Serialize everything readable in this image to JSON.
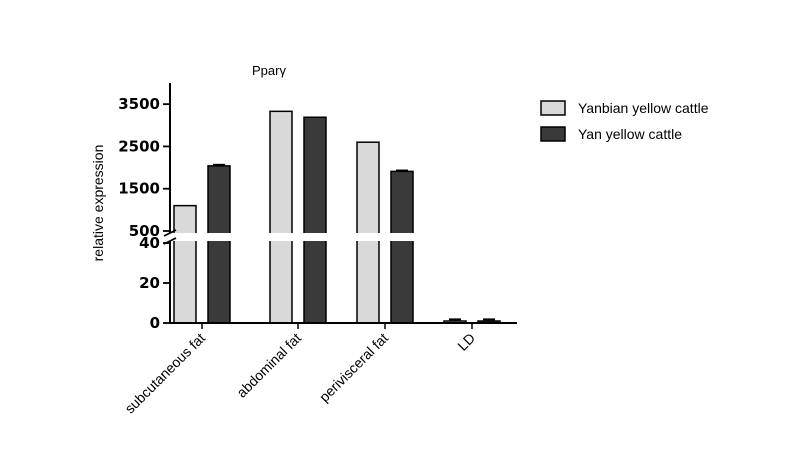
{
  "chart_data": {
    "type": "bar",
    "title": "Pparγ",
    "ylabel": "relative expression",
    "xlabel": "",
    "categories": [
      "subcutaneous fat",
      "abdominal fat",
      "perivisceral fat",
      "LD"
    ],
    "series": [
      {
        "name": "Yanbian yellow cattle",
        "color": "#d9d9d9",
        "values": [
          1100,
          3330,
          2600,
          1
        ],
        "errors": [
          0,
          0,
          0,
          0.8
        ]
      },
      {
        "name": "Yan yellow cattle",
        "color": "#3a3a3a",
        "values": [
          2040,
          3190,
          1910,
          1
        ],
        "errors": [
          25,
          0,
          20,
          0.8
        ]
      }
    ],
    "axis_segments": [
      {
        "ylim": [
          0,
          40
        ],
        "ticks": [
          "0",
          "20",
          "40"
        ]
      },
      {
        "ylim": [
          500,
          4000
        ],
        "ticks": [
          "500",
          "1500",
          "2500",
          "3500"
        ]
      }
    ],
    "legend_position": "top-right",
    "grid": false
  }
}
